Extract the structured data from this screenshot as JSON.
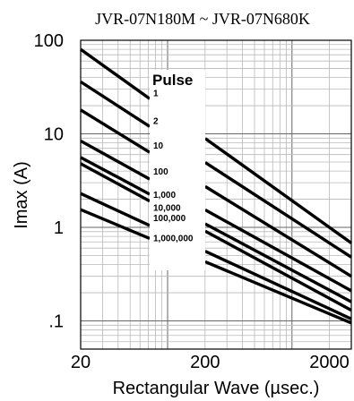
{
  "chart_data": {
    "type": "line",
    "title": "JVR-07N180M ~ JVR-07N680K",
    "xlabel": "Rectangular Wave (µsec.)",
    "ylabel": "Imax (A)",
    "x_scale": "log",
    "y_scale": "log",
    "xlim": [
      20,
      3000
    ],
    "ylim": [
      0.05,
      100
    ],
    "x_ticks": [
      {
        "value": 20,
        "label": "20"
      },
      {
        "value": 200,
        "label": "200"
      },
      {
        "value": 2000,
        "label": "2000"
      }
    ],
    "y_ticks": [
      {
        "value": 100,
        "label": "100"
      },
      {
        "value": 10,
        "label": "10"
      },
      {
        "value": 1,
        "label": "1"
      },
      {
        "value": 0.1,
        "label": ".1"
      }
    ],
    "grid": true,
    "legend_title": "Pulse",
    "series": [
      {
        "name": "1",
        "points": [
          [
            20,
            80
          ],
          [
            3000,
            0.68
          ]
        ]
      },
      {
        "name": "2",
        "points": [
          [
            20,
            36
          ],
          [
            3000,
            0.48
          ]
        ]
      },
      {
        "name": "10",
        "points": [
          [
            20,
            18
          ],
          [
            3000,
            0.3
          ]
        ]
      },
      {
        "name": "100",
        "points": [
          [
            20,
            8.4
          ],
          [
            3000,
            0.21
          ]
        ]
      },
      {
        "name": "1,000",
        "points": [
          [
            20,
            5.6
          ],
          [
            3000,
            0.16
          ]
        ]
      },
      {
        "name": "10,000",
        "points": [
          [
            20,
            4.8
          ],
          [
            3000,
            0.13
          ]
        ]
      },
      {
        "name": "100,000",
        "points": [
          [
            20,
            2.3
          ],
          [
            3000,
            0.105
          ]
        ]
      },
      {
        "name": "1,000,000",
        "points": [
          [
            20,
            1.55
          ],
          [
            3000,
            0.095
          ]
        ]
      }
    ]
  }
}
